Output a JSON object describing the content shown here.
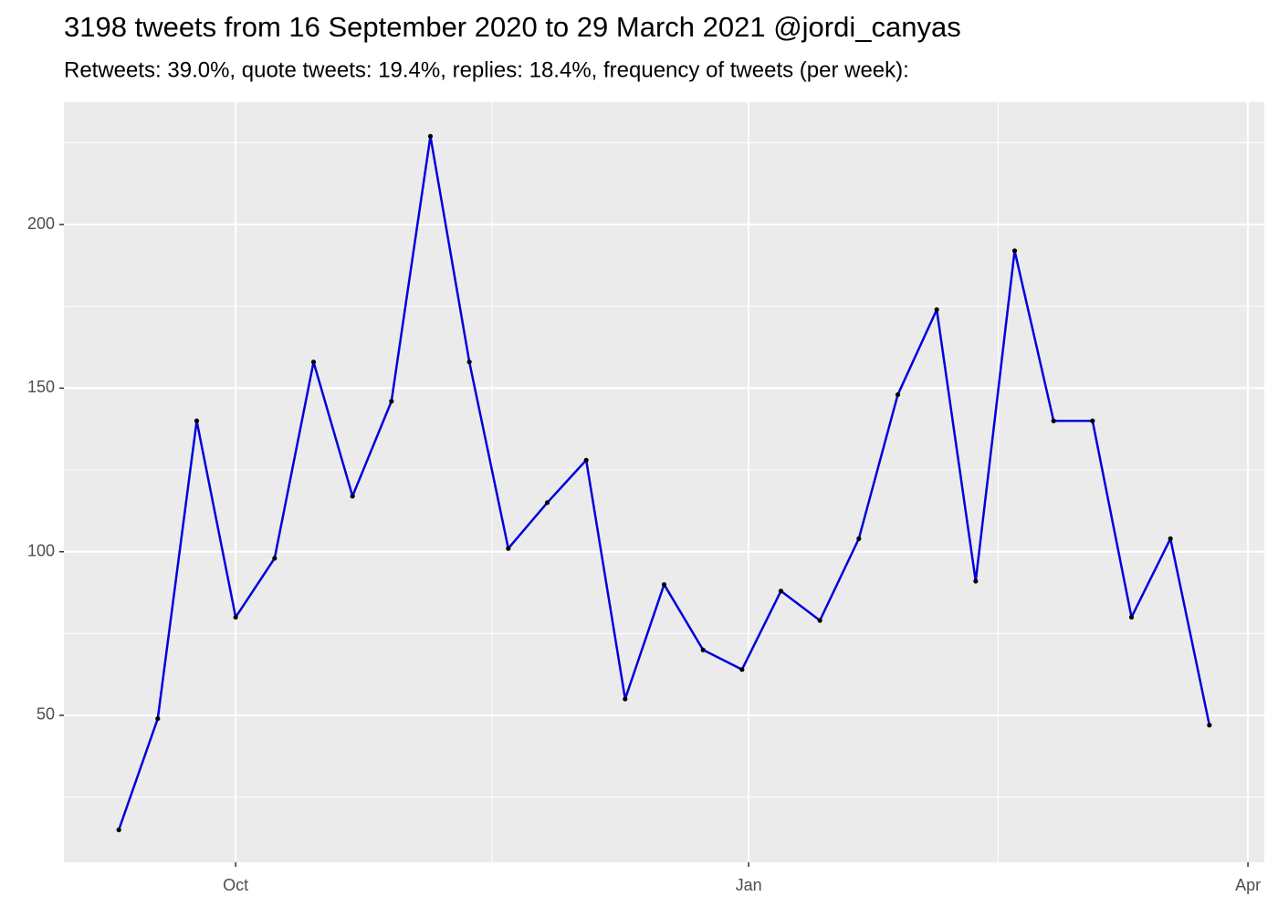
{
  "chart_data": {
    "type": "line",
    "title": "3198 tweets from 16 September 2020 to 29 March 2021 @jordi_canyas",
    "subtitle": "Retweets: 39.0%, quote tweets: 19.4%, replies: 18.4%, frequency of tweets (per week):",
    "x": [
      0,
      1,
      2,
      3,
      4,
      5,
      6,
      7,
      8,
      9,
      10,
      11,
      12,
      13,
      14,
      15,
      16,
      17,
      18,
      19,
      20,
      21,
      22,
      23,
      24,
      25,
      26,
      27,
      28
    ],
    "values": [
      15,
      49,
      140,
      80,
      98,
      158,
      117,
      146,
      227,
      158,
      101,
      115,
      128,
      55,
      90,
      70,
      64,
      88,
      79,
      104,
      148,
      174,
      91,
      192,
      140,
      140,
      80,
      104,
      47
    ],
    "color": "#0000dd",
    "point_color": "#000000",
    "xlim": [
      -1.41,
      29.41
    ],
    "xticks": [
      {
        "value": 3,
        "label": "Oct"
      },
      {
        "value": 16.17,
        "label": "Jan"
      },
      {
        "value": 28.99,
        "label": "Apr"
      }
    ],
    "ylim": [
      5.1,
      237.4
    ],
    "yticks": [
      50,
      100,
      150,
      200
    ],
    "grid": true
  }
}
